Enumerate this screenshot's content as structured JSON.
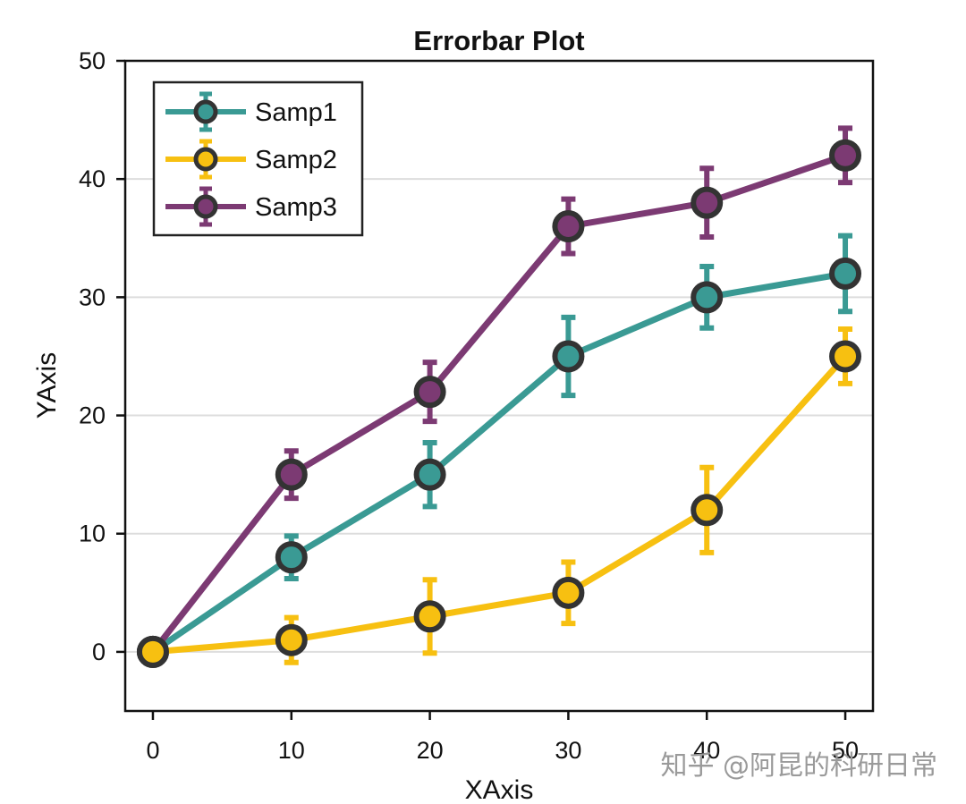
{
  "chart_data": {
    "type": "line",
    "title": "Errorbar Plot",
    "xlabel": "XAxis",
    "ylabel": "YAxis",
    "x": [
      0,
      10,
      20,
      30,
      40,
      50
    ],
    "xlim": [
      -2,
      52
    ],
    "ylim": [
      -5,
      50
    ],
    "xticks": [
      "0",
      "10",
      "20",
      "30",
      "40",
      "50"
    ],
    "yticks": [
      "0",
      "10",
      "20",
      "30",
      "40",
      "50"
    ],
    "grid": "horizontal",
    "legend_position": "top-left",
    "series": [
      {
        "name": "Samp1",
        "color": "#3a9a94",
        "values": [
          0,
          8,
          15,
          25,
          30,
          32
        ],
        "errors": [
          0,
          1.8,
          2.7,
          3.3,
          2.6,
          3.2
        ]
      },
      {
        "name": "Samp2",
        "color": "#f7c011",
        "values": [
          0,
          1,
          3,
          5,
          12,
          25
        ],
        "errors": [
          0,
          1.9,
          3.1,
          2.6,
          3.6,
          2.3
        ]
      },
      {
        "name": "Samp3",
        "color": "#7c3a73",
        "values": [
          0,
          15,
          22,
          36,
          38,
          42
        ],
        "errors": [
          0,
          2.0,
          2.5,
          2.3,
          2.9,
          2.3
        ]
      }
    ],
    "marker_edge_color": "#333333",
    "watermark": "知乎 @阿昆的科研日常"
  }
}
